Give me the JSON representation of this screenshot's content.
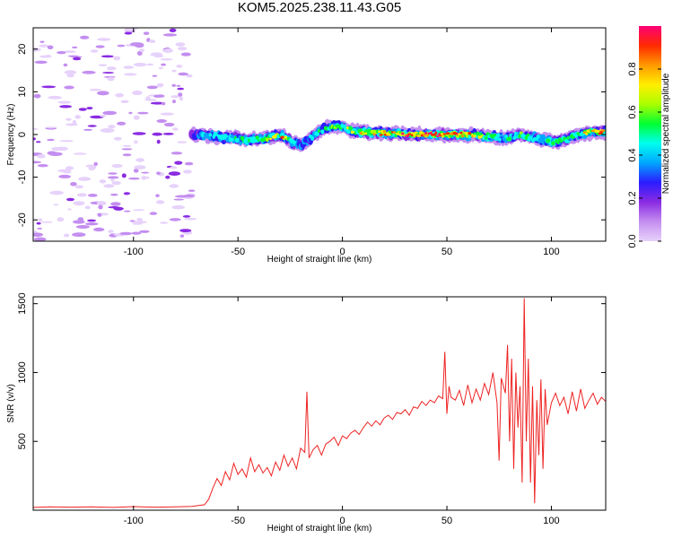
{
  "title": "KOM5.2025.238.11.43.G05",
  "colors": {
    "snr_line": "#ee2222",
    "colormap": [
      "#e7d2fb",
      "#c48ef0",
      "#8a2be2",
      "#2b1cff",
      "#00a6ff",
      "#00ffee",
      "#00ff33",
      "#aaff00",
      "#ffee00",
      "#ff9900",
      "#ff2a00",
      "#ff0077"
    ]
  },
  "chart_data": [
    {
      "type": "heatmap",
      "name": "spectrogram",
      "xlabel": "Height of straight line (km)",
      "ylabel": "Frequency (Hz)",
      "xlim": [
        -148,
        126
      ],
      "ylim": [
        -25,
        25
      ],
      "x_ticks": [
        -100,
        -50,
        0,
        50,
        100
      ],
      "x_tick_labels": [
        "-100",
        "-50",
        "0",
        "50",
        "100"
      ],
      "y_ticks": [
        -20,
        -10,
        0,
        10,
        20
      ],
      "y_tick_labels": [
        "-20",
        "-10",
        "0",
        "10",
        "20"
      ],
      "colorbar": {
        "label": "Normalized spectral amplitude",
        "range": [
          0,
          1
        ],
        "ticks": [
          0.0,
          0.2,
          0.4,
          0.6,
          0.8
        ],
        "tick_labels": [
          "0.0",
          "0.2",
          "0.4",
          "0.6",
          "0.8"
        ]
      },
      "noise_region_x": [
        -148,
        -72
      ],
      "signal_trace": [
        {
          "x": -72,
          "f": 0.0,
          "amp": 0.25
        },
        {
          "x": -65,
          "f": -0.3,
          "amp": 0.4
        },
        {
          "x": -58,
          "f": -0.7,
          "amp": 0.45
        },
        {
          "x": -50,
          "f": -1.0,
          "amp": 0.5
        },
        {
          "x": -45,
          "f": -1.2,
          "amp": 0.5
        },
        {
          "x": -38,
          "f": -1.0,
          "amp": 0.55
        },
        {
          "x": -33,
          "f": -0.5,
          "amp": 0.7
        },
        {
          "x": -28,
          "f": -0.5,
          "amp": 0.8
        },
        {
          "x": -24,
          "f": -2.0,
          "amp": 0.45
        },
        {
          "x": -20,
          "f": -2.5,
          "amp": 0.4
        },
        {
          "x": -15,
          "f": -0.8,
          "amp": 0.45
        },
        {
          "x": -10,
          "f": 1.0,
          "amp": 0.5
        },
        {
          "x": -5,
          "f": 2.0,
          "amp": 0.55
        },
        {
          "x": 0,
          "f": 1.8,
          "amp": 0.6
        },
        {
          "x": 5,
          "f": 0.8,
          "amp": 0.7
        },
        {
          "x": 10,
          "f": 0.5,
          "amp": 0.7
        },
        {
          "x": 20,
          "f": 0.3,
          "amp": 0.75
        },
        {
          "x": 30,
          "f": 0.1,
          "amp": 0.85
        },
        {
          "x": 40,
          "f": 0.0,
          "amp": 0.9
        },
        {
          "x": 50,
          "f": 0.0,
          "amp": 0.85
        },
        {
          "x": 55,
          "f": 0.0,
          "amp": 0.95
        },
        {
          "x": 65,
          "f": -0.2,
          "amp": 0.75
        },
        {
          "x": 72,
          "f": -0.5,
          "amp": 0.55
        },
        {
          "x": 78,
          "f": -1.0,
          "amp": 0.45
        },
        {
          "x": 85,
          "f": 0.0,
          "amp": 0.6
        },
        {
          "x": 90,
          "f": -0.5,
          "amp": 0.55
        },
        {
          "x": 96,
          "f": -1.2,
          "amp": 0.45
        },
        {
          "x": 102,
          "f": -1.8,
          "amp": 0.5
        },
        {
          "x": 108,
          "f": -1.0,
          "amp": 0.55
        },
        {
          "x": 115,
          "f": 0.3,
          "amp": 0.7
        },
        {
          "x": 120,
          "f": 0.6,
          "amp": 0.8
        },
        {
          "x": 126,
          "f": 0.5,
          "amp": 0.85
        }
      ]
    },
    {
      "type": "line",
      "name": "snr",
      "xlabel": "Height of straight line (km)",
      "ylabel": "SNR (v/v)",
      "xlim": [
        -148,
        126
      ],
      "ylim": [
        0,
        1550
      ],
      "x_ticks": [
        -100,
        -50,
        0,
        50,
        100
      ],
      "x_tick_labels": [
        "-100",
        "-50",
        "0",
        "50",
        "100"
      ],
      "y_ticks": [
        500,
        1000,
        1500
      ],
      "y_tick_labels": [
        "500",
        "1000",
        "1500"
      ],
      "series": [
        {
          "x": [
            -148,
            -140,
            -130,
            -120,
            -110,
            -100,
            -90,
            -80,
            -72,
            -66,
            -64,
            -62,
            -60,
            -58,
            -56,
            -54,
            -52,
            -50,
            -48,
            -46,
            -44,
            -42,
            -40,
            -38,
            -36,
            -34,
            -32,
            -30,
            -28,
            -26,
            -24,
            -22,
            -20,
            -18,
            -17,
            -16,
            -14,
            -12,
            -10,
            -8,
            -6,
            -4,
            -2,
            0,
            2,
            4,
            6,
            8,
            10,
            12,
            14,
            16,
            18,
            20,
            22,
            24,
            26,
            28,
            30,
            32,
            34,
            36,
            38,
            40,
            42,
            44,
            46,
            48,
            49,
            50,
            51,
            52,
            54,
            56,
            58,
            60,
            62,
            64,
            66,
            68,
            70,
            72,
            74,
            75,
            76,
            78,
            79,
            80,
            81,
            82,
            83,
            84,
            85,
            86,
            87,
            88,
            89,
            90,
            91,
            92,
            93,
            94,
            95,
            96,
            97,
            98,
            100,
            102,
            104,
            106,
            108,
            110,
            112,
            114,
            116,
            118,
            120,
            122,
            124,
            126
          ],
          "y": [
            20,
            25,
            22,
            24,
            20,
            26,
            22,
            25,
            28,
            40,
            80,
            160,
            230,
            180,
            280,
            220,
            340,
            260,
            300,
            240,
            380,
            280,
            330,
            270,
            310,
            250,
            350,
            290,
            400,
            320,
            380,
            300,
            450,
            420,
            860,
            380,
            440,
            470,
            400,
            480,
            500,
            530,
            470,
            540,
            520,
            560,
            580,
            550,
            600,
            640,
            610,
            650,
            620,
            670,
            690,
            660,
            710,
            700,
            730,
            690,
            750,
            740,
            790,
            760,
            800,
            780,
            830,
            810,
            1150,
            700,
            900,
            820,
            800,
            870,
            760,
            910,
            780,
            880,
            800,
            920,
            840,
            1000,
            780,
            360,
            960,
            850,
            1200,
            500,
            1100,
            300,
            1000,
            600,
            900,
            200,
            1540,
            500,
            1100,
            200,
            900,
            50,
            800,
            400,
            950,
            300,
            880,
            620,
            780,
            850,
            760,
            820,
            700,
            860,
            720,
            880,
            740,
            800,
            850,
            770,
            820,
            790
          ]
        }
      ]
    }
  ]
}
